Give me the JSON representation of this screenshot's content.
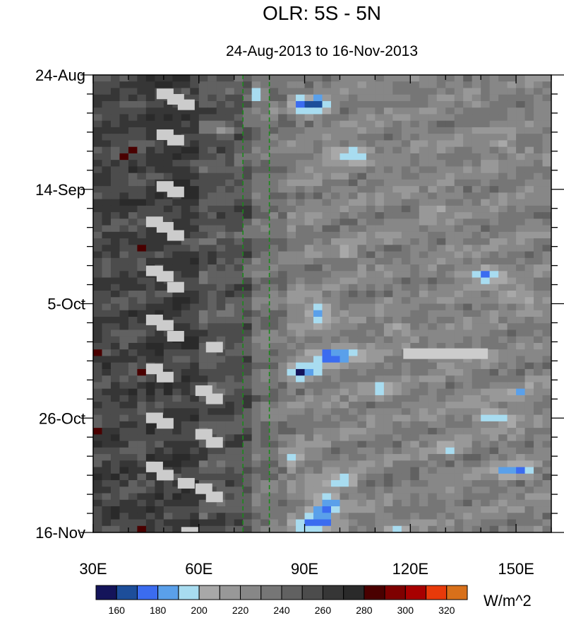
{
  "chart_data": {
    "type": "heatmap",
    "title": "OLR: 5S - 5N",
    "subtitle": "24-Aug-2013 to 16-Nov-2013",
    "x_axis": {
      "range": [
        30,
        160
      ],
      "ticks": [
        {
          "value": 30,
          "label": "30E"
        },
        {
          "value": 60,
          "label": "60E"
        },
        {
          "value": 90,
          "label": "90E"
        },
        {
          "value": 120,
          "label": "120E"
        },
        {
          "value": 150,
          "label": "150E"
        }
      ],
      "minor_step": 10
    },
    "y_axis": {
      "range_days": [
        0,
        84
      ],
      "direction": "top-to-bottom",
      "ticks": [
        {
          "value": 0,
          "label": "24-Aug"
        },
        {
          "value": 21,
          "label": "14-Sep"
        },
        {
          "value": 42,
          "label": "5-Oct"
        },
        {
          "value": 63,
          "label": "26-Oct"
        },
        {
          "value": 84,
          "label": "16-Nov"
        }
      ],
      "minor_step": 3.5
    },
    "reference_lines": [
      {
        "lon": 72.5,
        "style": "dashed",
        "color": "#1a8a1a"
      },
      {
        "lon": 80,
        "style": "dashed",
        "color": "#1a8a1a"
      }
    ],
    "colorbar": {
      "units": "W/m^2",
      "levels": [
        160,
        170,
        180,
        190,
        200,
        210,
        220,
        230,
        240,
        250,
        260,
        270,
        280,
        290,
        300,
        310,
        320
      ],
      "tick_labels": [
        "160",
        "180",
        "200",
        "220",
        "240",
        "260",
        "280",
        "300",
        "320"
      ],
      "colors": [
        "#14145a",
        "#1d4e9a",
        "#3b6cf0",
        "#5aa0ea",
        "#a8dcf0",
        "#a8a8a8",
        "#989898",
        "#878787",
        "#767676",
        "#616161",
        "#4c4c4c",
        "#363636",
        "#2a2a2a",
        "#4a0000",
        "#7e0000",
        "#a80000",
        "#e83a0a",
        "#d8701a"
      ]
    }
  }
}
